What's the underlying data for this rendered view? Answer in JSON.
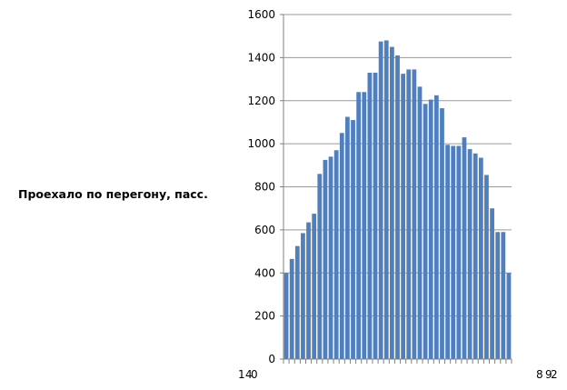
{
  "side_label": "Проехало по перегону, пасс.",
  "chart_data": {
    "type": "bar",
    "color": "#4f7fbf",
    "grid": true,
    "ylim": [
      0,
      1600
    ],
    "yticks": [
      0,
      200,
      400,
      600,
      800,
      1000,
      1200,
      1400,
      1600
    ],
    "values": [
      400,
      465,
      525,
      585,
      635,
      675,
      860,
      925,
      940,
      970,
      1050,
      1125,
      1110,
      1240,
      1240,
      1330,
      1330,
      1475,
      1480,
      1450,
      1410,
      1325,
      1345,
      1345,
      1265,
      1185,
      1205,
      1225,
      1165,
      995,
      990,
      990,
      1030,
      975,
      955,
      935,
      855,
      700,
      590,
      590,
      400
    ],
    "visible_tick_labels": [
      "1",
      "4",
      "0",
      "8",
      "9",
      "2"
    ]
  }
}
